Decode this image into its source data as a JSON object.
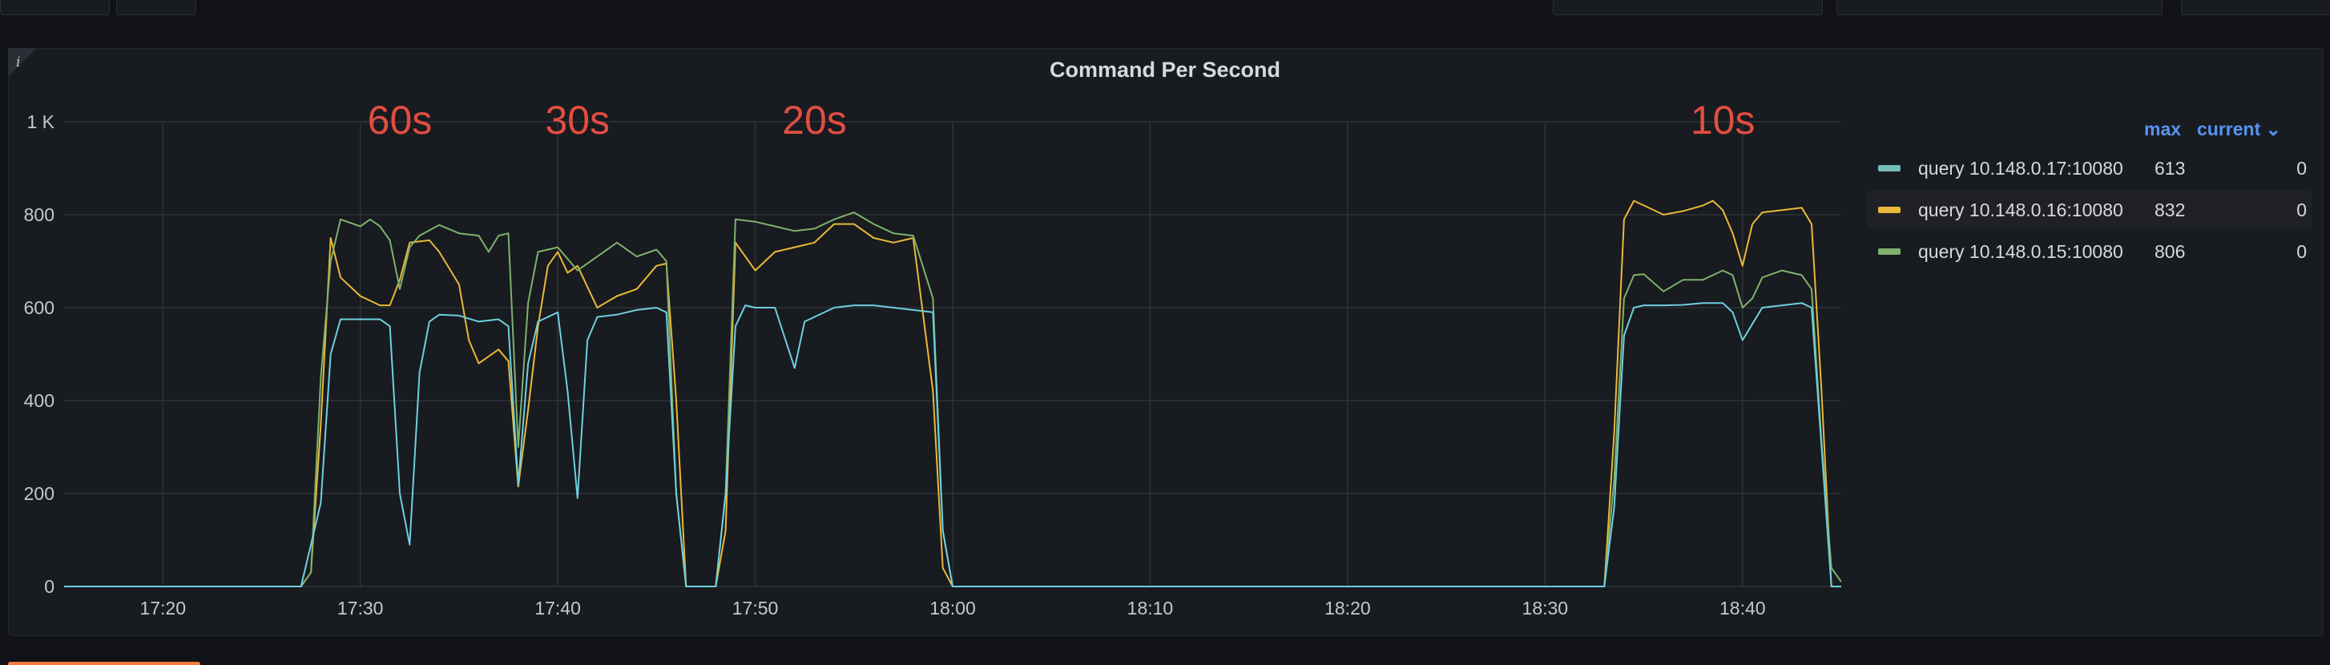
{
  "panel": {
    "title": "Command Per Second",
    "info_icon": "info-icon"
  },
  "legend": {
    "header_max": "max",
    "header_current": "current ⌄",
    "rows": [
      {
        "name": "query 10.148.0.17:10080",
        "max": "613",
        "current": "0",
        "color": "#73bfb8"
      },
      {
        "name": "query 10.148.0.16:10080",
        "max": "832",
        "current": "0",
        "color": "#fade2a"
      },
      {
        "name": "query 10.148.0.15:10080",
        "max": "806",
        "current": "0",
        "color": "#7eb26d"
      }
    ]
  },
  "colors": {
    "cyan": "#6ed0e0",
    "yellow": "#eab839",
    "green": "#7eb26d",
    "annotation": "#e24d42",
    "legend_header": "#5794f2"
  },
  "chart_data": {
    "type": "line",
    "title": "Command Per Second",
    "xlabel": "",
    "ylabel": "",
    "x_range_minutes": [
      "17:15",
      "18:45"
    ],
    "ylim": [
      0,
      1000
    ],
    "y_ticks": [
      "0",
      "200",
      "400",
      "600",
      "800",
      "1 K"
    ],
    "x_ticks": [
      "17:20",
      "17:30",
      "17:40",
      "17:50",
      "18:00",
      "18:10",
      "18:20",
      "18:30",
      "18:40"
    ],
    "grid": true,
    "legend_placement": "right",
    "annotations": [
      {
        "label": "60s",
        "x": "17:32"
      },
      {
        "label": "30s",
        "x": "17:41"
      },
      {
        "label": "20s",
        "x": "17:53"
      },
      {
        "label": "10s",
        "x": "18:39"
      }
    ],
    "series": [
      {
        "name": "query 10.148.0.17:10080",
        "color": "#6ed0e0",
        "points": [
          [
            "17:15",
            0
          ],
          [
            "17:27",
            0
          ],
          [
            "17:28",
            180
          ],
          [
            "17:28.5",
            500
          ],
          [
            "17:29",
            575
          ],
          [
            "17:30",
            575
          ],
          [
            "17:31",
            575
          ],
          [
            "17:31.5",
            560
          ],
          [
            "17:32",
            200
          ],
          [
            "17:32.5",
            90
          ],
          [
            "17:33",
            460
          ],
          [
            "17:33.5",
            570
          ],
          [
            "17:34",
            585
          ],
          [
            "17:35",
            583
          ],
          [
            "17:36",
            570
          ],
          [
            "17:37",
            575
          ],
          [
            "17:37.5",
            560
          ],
          [
            "17:38",
            220
          ],
          [
            "17:38.5",
            480
          ],
          [
            "17:39",
            570
          ],
          [
            "17:40",
            590
          ],
          [
            "17:40.5",
            420
          ],
          [
            "17:41",
            190
          ],
          [
            "17:41.5",
            530
          ],
          [
            "17:42",
            580
          ],
          [
            "17:43",
            585
          ],
          [
            "17:44",
            595
          ],
          [
            "17:45",
            600
          ],
          [
            "17:45.5",
            590
          ],
          [
            "17:46",
            200
          ],
          [
            "17:46.5",
            0
          ],
          [
            "17:48",
            0
          ],
          [
            "17:48.5",
            200
          ],
          [
            "17:49",
            560
          ],
          [
            "17:49.5",
            605
          ],
          [
            "17:50",
            600
          ],
          [
            "17:51",
            600
          ],
          [
            "17:52",
            470
          ],
          [
            "17:52.5",
            570
          ],
          [
            "17:53",
            580
          ],
          [
            "17:54",
            600
          ],
          [
            "17:55",
            605
          ],
          [
            "17:56",
            605
          ],
          [
            "17:57",
            600
          ],
          [
            "17:58",
            595
          ],
          [
            "17:59",
            590
          ],
          [
            "17:59.5",
            120
          ],
          [
            "18:00",
            0
          ],
          [
            "18:33",
            0
          ],
          [
            "18:33.5",
            170
          ],
          [
            "18:34",
            540
          ],
          [
            "18:34.5",
            600
          ],
          [
            "18:35",
            605
          ],
          [
            "18:36",
            605
          ],
          [
            "18:37",
            606
          ],
          [
            "18:38",
            610
          ],
          [
            "18:39",
            610
          ],
          [
            "18:39.5",
            590
          ],
          [
            "18:40",
            530
          ],
          [
            "18:40.5",
            565
          ],
          [
            "18:41",
            600
          ],
          [
            "18:42",
            605
          ],
          [
            "18:43",
            610
          ],
          [
            "18:43.5",
            600
          ],
          [
            "18:44",
            300
          ],
          [
            "18:44.5",
            0
          ],
          [
            "18:45",
            0
          ]
        ]
      },
      {
        "name": "query 10.148.0.16:10080",
        "color": "#eab839",
        "points": [
          [
            "17:15",
            0
          ],
          [
            "17:27",
            0
          ],
          [
            "17:27.5",
            30
          ],
          [
            "17:28",
            350
          ],
          [
            "17:28.5",
            750
          ],
          [
            "17:29",
            665
          ],
          [
            "17:30",
            625
          ],
          [
            "17:31",
            605
          ],
          [
            "17:31.5",
            605
          ],
          [
            "17:32",
            660
          ],
          [
            "17:32.5",
            740
          ],
          [
            "17:33.5",
            745
          ],
          [
            "17:34",
            720
          ],
          [
            "17:35",
            650
          ],
          [
            "17:35.5",
            530
          ],
          [
            "17:36",
            480
          ],
          [
            "17:37",
            510
          ],
          [
            "17:37.5",
            485
          ],
          [
            "17:38",
            215
          ],
          [
            "17:38.5",
            380
          ],
          [
            "17:39",
            560
          ],
          [
            "17:39.5",
            690
          ],
          [
            "17:40",
            720
          ],
          [
            "17:40.5",
            675
          ],
          [
            "17:41",
            690
          ],
          [
            "17:42",
            600
          ],
          [
            "17:43",
            625
          ],
          [
            "17:44",
            640
          ],
          [
            "17:45",
            690
          ],
          [
            "17:45.5",
            695
          ],
          [
            "17:46",
            400
          ],
          [
            "17:46.5",
            0
          ],
          [
            "17:48",
            0
          ],
          [
            "17:48.5",
            120
          ],
          [
            "17:49",
            740
          ],
          [
            "17:50",
            680
          ],
          [
            "17:51",
            720
          ],
          [
            "17:52",
            730
          ],
          [
            "17:53",
            740
          ],
          [
            "17:54",
            780
          ],
          [
            "17:55",
            780
          ],
          [
            "17:56",
            750
          ],
          [
            "17:57",
            740
          ],
          [
            "17:58",
            750
          ],
          [
            "17:59",
            420
          ],
          [
            "17:59.5",
            40
          ],
          [
            "18:00",
            0
          ],
          [
            "18:33",
            0
          ],
          [
            "18:33.5",
            330
          ],
          [
            "18:34",
            790
          ],
          [
            "18:34.5",
            830
          ],
          [
            "18:35",
            820
          ],
          [
            "18:36",
            800
          ],
          [
            "18:37",
            808
          ],
          [
            "18:38",
            820
          ],
          [
            "18:38.5",
            830
          ],
          [
            "18:39",
            810
          ],
          [
            "18:39.5",
            760
          ],
          [
            "18:40",
            690
          ],
          [
            "18:40.5",
            780
          ],
          [
            "18:41",
            805
          ],
          [
            "18:42",
            810
          ],
          [
            "18:43",
            815
          ],
          [
            "18:43.5",
            780
          ],
          [
            "18:44",
            420
          ],
          [
            "18:44.5",
            0
          ],
          [
            "18:45",
            0
          ]
        ]
      },
      {
        "name": "query 10.148.0.15:10080",
        "color": "#7eb26d",
        "points": [
          [
            "17:15",
            0
          ],
          [
            "17:27",
            0
          ],
          [
            "17:27.5",
            30
          ],
          [
            "17:28",
            450
          ],
          [
            "17:28.5",
            700
          ],
          [
            "17:29",
            790
          ],
          [
            "17:30",
            775
          ],
          [
            "17:30.5",
            790
          ],
          [
            "17:31",
            775
          ],
          [
            "17:31.5",
            745
          ],
          [
            "17:32",
            640
          ],
          [
            "17:32.5",
            730
          ],
          [
            "17:33",
            755
          ],
          [
            "17:34",
            778
          ],
          [
            "17:35",
            760
          ],
          [
            "17:36",
            755
          ],
          [
            "17:36.5",
            720
          ],
          [
            "17:37",
            755
          ],
          [
            "17:37.5",
            760
          ],
          [
            "17:38",
            300
          ],
          [
            "17:38.5",
            610
          ],
          [
            "17:39",
            720
          ],
          [
            "17:40",
            730
          ],
          [
            "17:41",
            680
          ],
          [
            "17:42",
            710
          ],
          [
            "17:43",
            740
          ],
          [
            "17:44",
            710
          ],
          [
            "17:45",
            725
          ],
          [
            "17:45.5",
            700
          ],
          [
            "17:46",
            200
          ],
          [
            "17:46.5",
            0
          ],
          [
            "17:48",
            0
          ],
          [
            "17:48.5",
            200
          ],
          [
            "17:49",
            790
          ],
          [
            "17:50",
            785
          ],
          [
            "17:51",
            775
          ],
          [
            "17:52",
            765
          ],
          [
            "17:53",
            770
          ],
          [
            "17:54",
            790
          ],
          [
            "17:55",
            805
          ],
          [
            "17:56",
            780
          ],
          [
            "17:57",
            760
          ],
          [
            "17:58",
            755
          ],
          [
            "17:59",
            620
          ],
          [
            "17:59.5",
            120
          ],
          [
            "18:00",
            0
          ],
          [
            "18:33",
            0
          ],
          [
            "18:33.5",
            230
          ],
          [
            "18:34",
            620
          ],
          [
            "18:34.5",
            670
          ],
          [
            "18:35",
            672
          ],
          [
            "18:36",
            635
          ],
          [
            "18:37",
            660
          ],
          [
            "18:38",
            660
          ],
          [
            "18:39",
            680
          ],
          [
            "18:39.5",
            670
          ],
          [
            "18:40",
            600
          ],
          [
            "18:40.5",
            620
          ],
          [
            "18:41",
            665
          ],
          [
            "18:42",
            680
          ],
          [
            "18:43",
            670
          ],
          [
            "18:43.5",
            640
          ],
          [
            "18:44",
            310
          ],
          [
            "18:44.5",
            40
          ],
          [
            "18:45",
            10
          ]
        ]
      }
    ]
  }
}
